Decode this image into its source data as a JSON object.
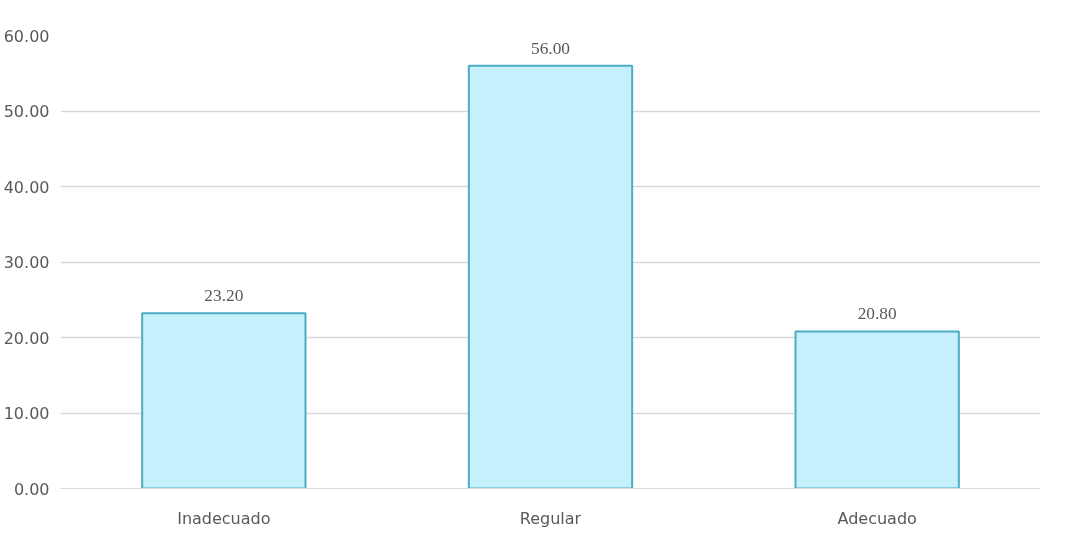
{
  "chart_data": {
    "type": "bar",
    "categories": [
      "Inadecuado",
      "Regular",
      "Adecuado"
    ],
    "values": [
      23.2,
      56.0,
      20.8
    ],
    "value_labels": [
      "23.20",
      "56.00",
      "20.80"
    ],
    "color": "#c6f0fb",
    "ylim": [
      0,
      60
    ],
    "yticks": [
      {
        "value": 0,
        "label": "0.00"
      },
      {
        "value": 10,
        "label": "10.00"
      },
      {
        "value": 20,
        "label": "20.00"
      },
      {
        "value": 30,
        "label": "30.00"
      },
      {
        "value": 40,
        "label": "40.00"
      },
      {
        "value": 50,
        "label": "50.00"
      },
      {
        "value": 60,
        "label": "60.00"
      }
    ],
    "grid": "y"
  }
}
